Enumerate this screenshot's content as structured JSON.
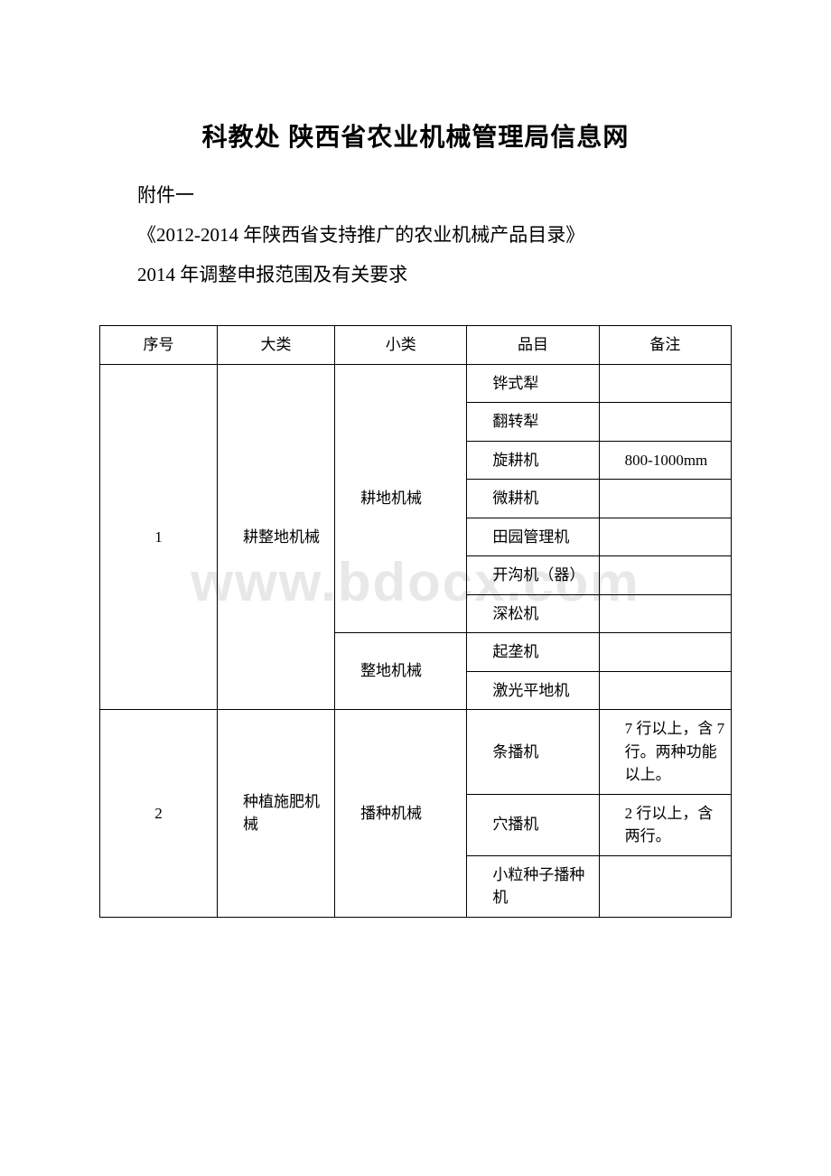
{
  "watermark": "www.bdocx.com",
  "title": "科教处 陕西省农业机械管理局信息网",
  "paragraphs": [
    "附件一",
    "《2012-2014 年陕西省支持推广的农业机械产品目录》",
    "2014 年调整申报范围及有关要求"
  ],
  "table": {
    "type": "table",
    "border_color": "#000000",
    "background_color": "#ffffff",
    "font_size": 17,
    "columns": [
      "序号",
      "大类",
      "小类",
      "品目",
      "备注"
    ],
    "header": {
      "seq": "序号",
      "category": "大类",
      "subcategory": "小类",
      "item": "品目",
      "note": "备注"
    },
    "groups": [
      {
        "seq": "1",
        "category": "耕整地机械",
        "subs": [
          {
            "subcategory": "耕地机械",
            "items": [
              {
                "item": "铧式犁",
                "note": ""
              },
              {
                "item": "翻转犁",
                "note": ""
              },
              {
                "item": "旋耕机",
                "note": "800-1000mm"
              },
              {
                "item": "微耕机",
                "note": ""
              },
              {
                "item": "田园管理机",
                "note": ""
              },
              {
                "item": "开沟机（器）",
                "note": ""
              },
              {
                "item": "深松机",
                "note": ""
              }
            ]
          },
          {
            "subcategory": "整地机械",
            "items": [
              {
                "item": "起垄机",
                "note": ""
              },
              {
                "item": "激光平地机",
                "note": ""
              }
            ]
          }
        ]
      },
      {
        "seq": "2",
        "category": "种植施肥机械",
        "subs": [
          {
            "subcategory": "播种机械",
            "items": [
              {
                "item": "条播机",
                "note": "7 行以上，含 7 行。两种功能以上。"
              },
              {
                "item": "穴播机",
                "note": "2 行以上，含两行。"
              },
              {
                "item": "小粒种子播种机",
                "note": ""
              }
            ]
          }
        ]
      }
    ]
  }
}
